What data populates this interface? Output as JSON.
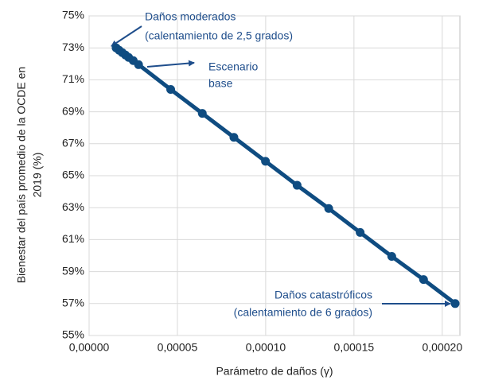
{
  "chart_data": {
    "type": "line",
    "x_label": "Parámetro de daños (γ)",
    "y_label": [
      "Bienestar del país promedio de la OCDE en",
      "2019 (%)"
    ],
    "x": [
      1.53e-05,
      1.7e-05,
      1.88e-05,
      2.06e-05,
      2.24e-05,
      2.5e-05,
      2.8e-05,
      4.62e-05,
      6.41e-05,
      8.2e-05,
      9.99e-05,
      0.0001178,
      0.0001357,
      0.0001535,
      0.0001714,
      0.0001894,
      0.0002073
    ],
    "series": [
      {
        "color": "#0f4c81",
        "values": [
          73.0,
          72.85,
          72.7,
          72.55,
          72.4,
          72.2,
          71.95,
          70.4,
          68.9,
          67.4,
          65.9,
          64.4,
          62.95,
          61.45,
          59.95,
          58.5,
          57.0
        ]
      }
    ],
    "xlim": [
      0,
      0.00021
    ],
    "xticks": [
      {
        "value": 0,
        "label": "0,00000"
      },
      {
        "value": 5e-05,
        "label": "0,00005"
      },
      {
        "value": 0.0001,
        "label": "0,00010"
      },
      {
        "value": 0.00015,
        "label": "0,00015"
      },
      {
        "value": 0.0002,
        "label": "0,00020"
      }
    ],
    "ylim": [
      55,
      75
    ],
    "yticks": [
      {
        "value": 55,
        "label": "55%"
      },
      {
        "value": 57,
        "label": "57%"
      },
      {
        "value": 59,
        "label": "59%"
      },
      {
        "value": 61,
        "label": "61%"
      },
      {
        "value": 63,
        "label": "63%"
      },
      {
        "value": 65,
        "label": "65%"
      },
      {
        "value": 67,
        "label": "67%"
      },
      {
        "value": 69,
        "label": "69%"
      },
      {
        "value": 71,
        "label": "71%"
      },
      {
        "value": 73,
        "label": "73%"
      },
      {
        "value": 75,
        "label": "75%"
      }
    ],
    "grid": true,
    "annotations": [
      {
        "lines": [
          "Daños moderados",
          "(calentamiento de 2,5 grados)"
        ]
      },
      {
        "lines": [
          "Escenario",
          "base"
        ]
      },
      {
        "lines": [
          "Daños catastróficos",
          "(calentamiento de 6 grados)"
        ]
      }
    ]
  }
}
